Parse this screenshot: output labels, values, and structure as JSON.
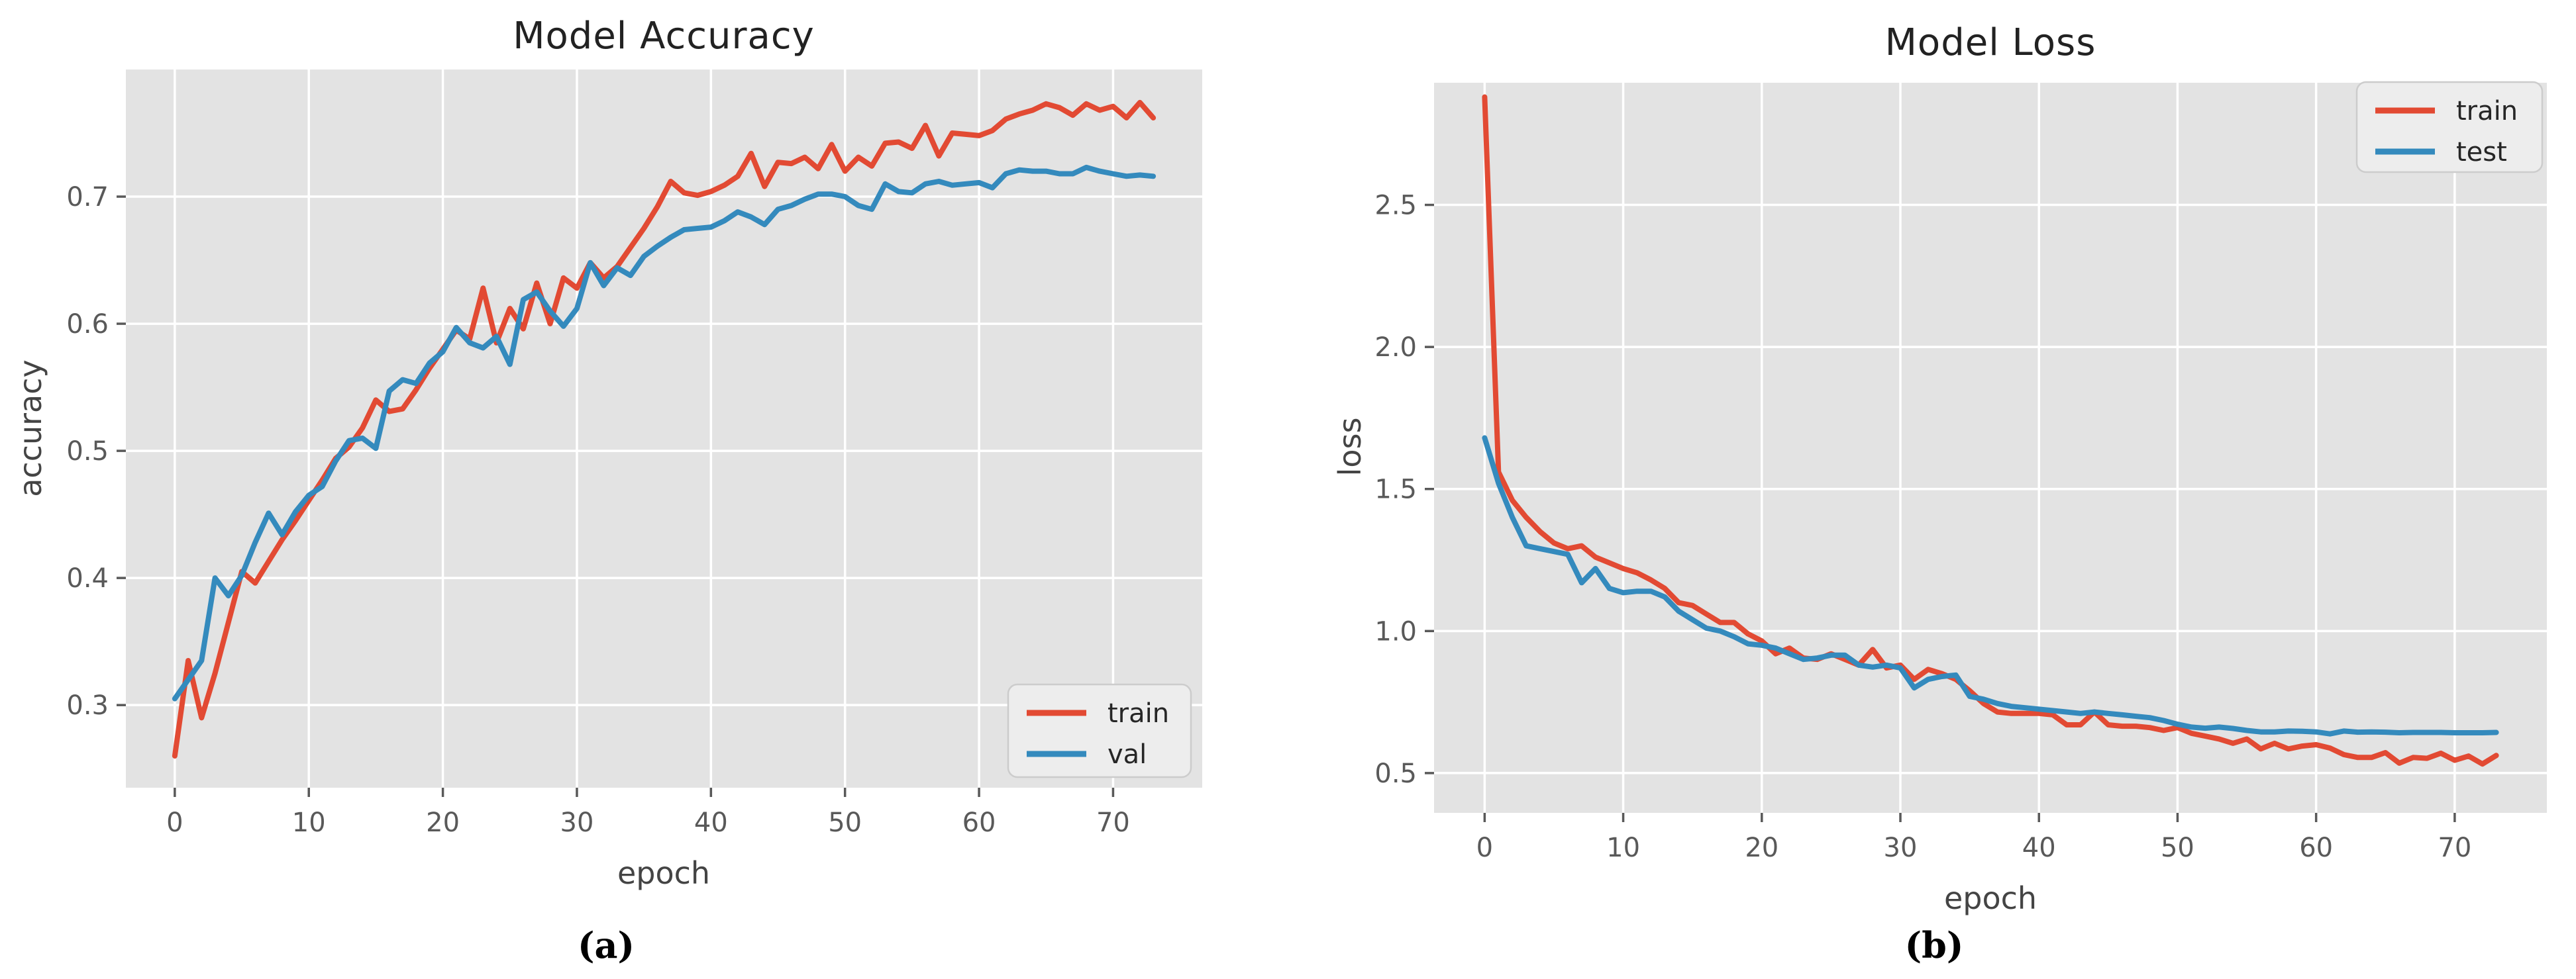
{
  "page": {
    "background": "#ffffff",
    "plot_background": "#e3e3e3",
    "grid_color": "#ffffff",
    "tick_color": "#595959",
    "text_color": "#262626",
    "accent_train": "#E24A33",
    "accent_valtest": "#348ABD"
  },
  "chart_data": [
    {
      "type": "line",
      "title": "Model Accuracy",
      "xlabel": "epoch",
      "ylabel": "accuracy",
      "caption": "(a)",
      "grid": true,
      "xlim": [
        -3.65,
        76.65
      ],
      "ylim": [
        0.235,
        0.8
      ],
      "xticks": [
        0,
        10,
        20,
        30,
        40,
        50,
        60,
        70
      ],
      "xtick_labels": [
        "0",
        "10",
        "20",
        "30",
        "40",
        "50",
        "60",
        "70"
      ],
      "yticks": [
        0.3,
        0.4,
        0.5,
        0.6,
        0.7
      ],
      "ytick_labels": [
        "0.3",
        "0.4",
        "0.5",
        "0.6",
        "0.7"
      ],
      "legend": {
        "position": "lower right",
        "entries": [
          {
            "label": "train",
            "color": "#E24A33"
          },
          {
            "label": "val",
            "color": "#348ABD"
          }
        ]
      },
      "x": [
        0,
        1,
        2,
        3,
        4,
        5,
        6,
        7,
        8,
        9,
        10,
        11,
        12,
        13,
        14,
        15,
        16,
        17,
        18,
        19,
        20,
        21,
        22,
        23,
        24,
        25,
        26,
        27,
        28,
        29,
        30,
        31,
        32,
        33,
        34,
        35,
        36,
        37,
        38,
        39,
        40,
        41,
        42,
        43,
        44,
        45,
        46,
        47,
        48,
        49,
        50,
        51,
        52,
        53,
        54,
        55,
        56,
        57,
        58,
        59,
        60,
        61,
        62,
        63,
        64,
        65,
        66,
        67,
        68,
        69,
        70,
        71,
        72,
        73
      ],
      "series": [
        {
          "name": "train",
          "color": "#E24A33",
          "values": [
            0.26,
            0.335,
            0.29,
            0.325,
            0.365,
            0.405,
            0.396,
            0.413,
            0.43,
            0.445,
            0.461,
            0.477,
            0.494,
            0.503,
            0.518,
            0.54,
            0.531,
            0.533,
            0.548,
            0.565,
            0.58,
            0.595,
            0.588,
            0.628,
            0.585,
            0.612,
            0.596,
            0.632,
            0.6,
            0.636,
            0.628,
            0.648,
            0.636,
            0.645,
            0.66,
            0.675,
            0.692,
            0.712,
            0.703,
            0.701,
            0.704,
            0.709,
            0.716,
            0.734,
            0.708,
            0.727,
            0.726,
            0.731,
            0.722,
            0.741,
            0.72,
            0.731,
            0.724,
            0.742,
            0.743,
            0.738,
            0.756,
            0.732,
            0.75,
            0.749,
            0.748,
            0.752,
            0.761,
            0.765,
            0.768,
            0.773,
            0.77,
            0.764,
            0.773,
            0.768,
            0.771,
            0.762,
            0.774,
            0.762
          ]
        },
        {
          "name": "val",
          "color": "#348ABD",
          "values": [
            0.305,
            0.32,
            0.335,
            0.4,
            0.386,
            0.402,
            0.428,
            0.451,
            0.434,
            0.452,
            0.465,
            0.472,
            0.492,
            0.508,
            0.51,
            0.502,
            0.547,
            0.556,
            0.553,
            0.569,
            0.578,
            0.597,
            0.585,
            0.581,
            0.59,
            0.568,
            0.619,
            0.625,
            0.61,
            0.598,
            0.612,
            0.648,
            0.63,
            0.644,
            0.638,
            0.653,
            0.661,
            0.668,
            0.674,
            0.675,
            0.676,
            0.681,
            0.688,
            0.684,
            0.678,
            0.69,
            0.693,
            0.698,
            0.702,
            0.702,
            0.7,
            0.693,
            0.69,
            0.71,
            0.704,
            0.703,
            0.71,
            0.712,
            0.709,
            0.71,
            0.711,
            0.707,
            0.718,
            0.721,
            0.72,
            0.72,
            0.718,
            0.718,
            0.723,
            0.72,
            0.718,
            0.716,
            0.717,
            0.716
          ]
        }
      ]
    },
    {
      "type": "line",
      "title": "Model Loss",
      "xlabel": "epoch",
      "ylabel": "loss",
      "caption": "(b)",
      "grid": true,
      "xlim": [
        -3.65,
        76.65
      ],
      "ylim": [
        0.36,
        2.93
      ],
      "xticks": [
        0,
        10,
        20,
        30,
        40,
        50,
        60,
        70
      ],
      "xtick_labels": [
        "0",
        "10",
        "20",
        "30",
        "40",
        "50",
        "60",
        "70"
      ],
      "yticks": [
        0.5,
        1.0,
        1.5,
        2.0,
        2.5
      ],
      "ytick_labels": [
        "0.5",
        "1.0",
        "1.5",
        "2.0",
        "2.5"
      ],
      "legend": {
        "position": "upper right",
        "entries": [
          {
            "label": "train",
            "color": "#E24A33"
          },
          {
            "label": "test",
            "color": "#348ABD"
          }
        ]
      },
      "x": [
        0,
        1,
        2,
        3,
        4,
        5,
        6,
        7,
        8,
        9,
        10,
        11,
        12,
        13,
        14,
        15,
        16,
        17,
        18,
        19,
        20,
        21,
        22,
        23,
        24,
        25,
        26,
        27,
        28,
        29,
        30,
        31,
        32,
        33,
        34,
        35,
        36,
        37,
        38,
        39,
        40,
        41,
        42,
        43,
        44,
        45,
        46,
        47,
        48,
        49,
        50,
        51,
        52,
        53,
        54,
        55,
        56,
        57,
        58,
        59,
        60,
        61,
        62,
        63,
        64,
        65,
        66,
        67,
        68,
        69,
        70,
        71,
        72,
        73
      ],
      "series": [
        {
          "name": "train",
          "color": "#E24A33",
          "values": [
            2.88,
            1.56,
            1.46,
            1.4,
            1.35,
            1.31,
            1.29,
            1.3,
            1.26,
            1.24,
            1.22,
            1.205,
            1.18,
            1.15,
            1.1,
            1.09,
            1.06,
            1.03,
            1.03,
            0.99,
            0.965,
            0.92,
            0.94,
            0.905,
            0.9,
            0.92,
            0.9,
            0.88,
            0.935,
            0.87,
            0.88,
            0.83,
            0.865,
            0.85,
            0.83,
            0.79,
            0.745,
            0.715,
            0.71,
            0.71,
            0.71,
            0.705,
            0.67,
            0.67,
            0.715,
            0.67,
            0.665,
            0.665,
            0.66,
            0.65,
            0.66,
            0.64,
            0.63,
            0.62,
            0.605,
            0.62,
            0.585,
            0.605,
            0.585,
            0.595,
            0.6,
            0.588,
            0.565,
            0.555,
            0.555,
            0.572,
            0.535,
            0.555,
            0.552,
            0.57,
            0.545,
            0.56,
            0.532,
            0.562
          ]
        },
        {
          "name": "test",
          "color": "#348ABD",
          "values": [
            1.68,
            1.52,
            1.4,
            1.3,
            1.29,
            1.28,
            1.27,
            1.17,
            1.22,
            1.15,
            1.135,
            1.14,
            1.14,
            1.12,
            1.07,
            1.04,
            1.01,
            1.0,
            0.98,
            0.955,
            0.95,
            0.94,
            0.92,
            0.9,
            0.905,
            0.915,
            0.915,
            0.88,
            0.873,
            0.88,
            0.87,
            0.8,
            0.83,
            0.84,
            0.845,
            0.77,
            0.76,
            0.745,
            0.735,
            0.73,
            0.725,
            0.72,
            0.715,
            0.71,
            0.715,
            0.71,
            0.705,
            0.7,
            0.695,
            0.685,
            0.672,
            0.662,
            0.658,
            0.662,
            0.657,
            0.65,
            0.645,
            0.645,
            0.648,
            0.647,
            0.645,
            0.638,
            0.648,
            0.644,
            0.645,
            0.644,
            0.642,
            0.643,
            0.643,
            0.643,
            0.642,
            0.642,
            0.642,
            0.643
          ]
        }
      ]
    }
  ]
}
